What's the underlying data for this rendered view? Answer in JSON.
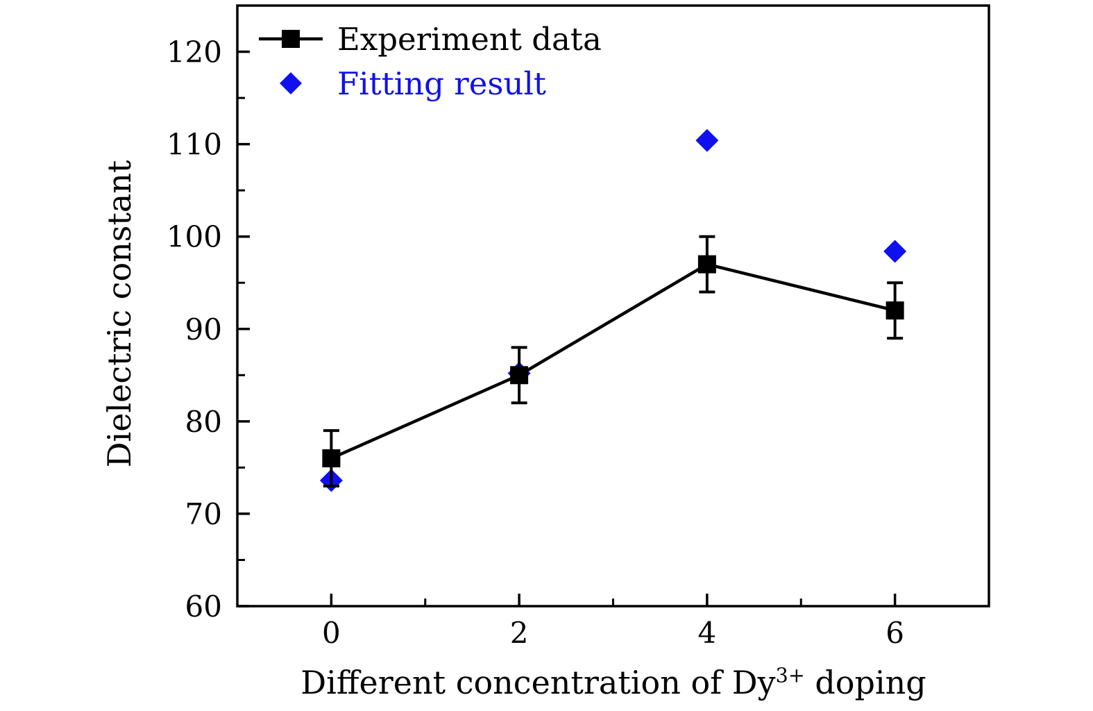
{
  "figure": {
    "background": "#ffffff",
    "axis_color": "#000000"
  },
  "chart_data": {
    "type": "scatter",
    "x": [
      0,
      2,
      4,
      6
    ],
    "series": [
      {
        "name": "Experiment data",
        "style": "line+scatter",
        "marker": "square",
        "color": "#000000",
        "values": [
          76,
          85,
          97,
          92
        ],
        "error_bars": [
          3,
          3,
          3,
          3
        ]
      },
      {
        "name": "Fitting result",
        "style": "scatter",
        "marker": "diamond",
        "color": "#1010ee",
        "values": [
          73.6,
          85.2,
          110.4,
          98.4
        ],
        "error_bars": null
      }
    ],
    "title": "",
    "xlabel": "Different concentration of Dy3+ doping",
    "xlabel_parts": {
      "prefix": "Different concentration of Dy",
      "superscript": "3+",
      "suffix": " doping"
    },
    "ylabel": "Dielectric constant",
    "xlim": [
      -1,
      7
    ],
    "ylim": [
      60,
      125
    ],
    "x_major_ticks": [
      0,
      2,
      4,
      6
    ],
    "x_minor_ticks": [
      1,
      3,
      5
    ],
    "y_major_ticks": [
      60,
      70,
      80,
      90,
      100,
      110,
      120
    ],
    "y_minor_ticks": [
      65,
      75,
      85,
      95,
      105,
      115
    ],
    "grid": false,
    "legend_position": "upper-left"
  }
}
